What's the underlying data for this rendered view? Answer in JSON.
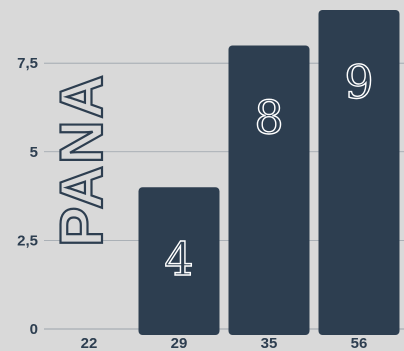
{
  "chart_data": {
    "type": "bar",
    "categories": [
      "22",
      "29",
      "35",
      "56"
    ],
    "values": [
      0,
      4,
      8,
      9
    ],
    "data_labels": [
      "",
      "4",
      "8",
      "9"
    ],
    "ylabel": "PANA",
    "xlabel": "",
    "title": "",
    "ylim": [
      0,
      9
    ],
    "yticks": [
      0,
      2.5,
      5,
      7.5
    ],
    "ytick_labels": [
      "0",
      "2,5",
      "5",
      "7,5"
    ],
    "grid": "horizontal",
    "colors": {
      "bar": "#2d3e50",
      "background": "#d9d9d9",
      "grid": "#9aa3ab",
      "tick_text": "#2d3e50",
      "data_label": "#ffffff"
    }
  }
}
